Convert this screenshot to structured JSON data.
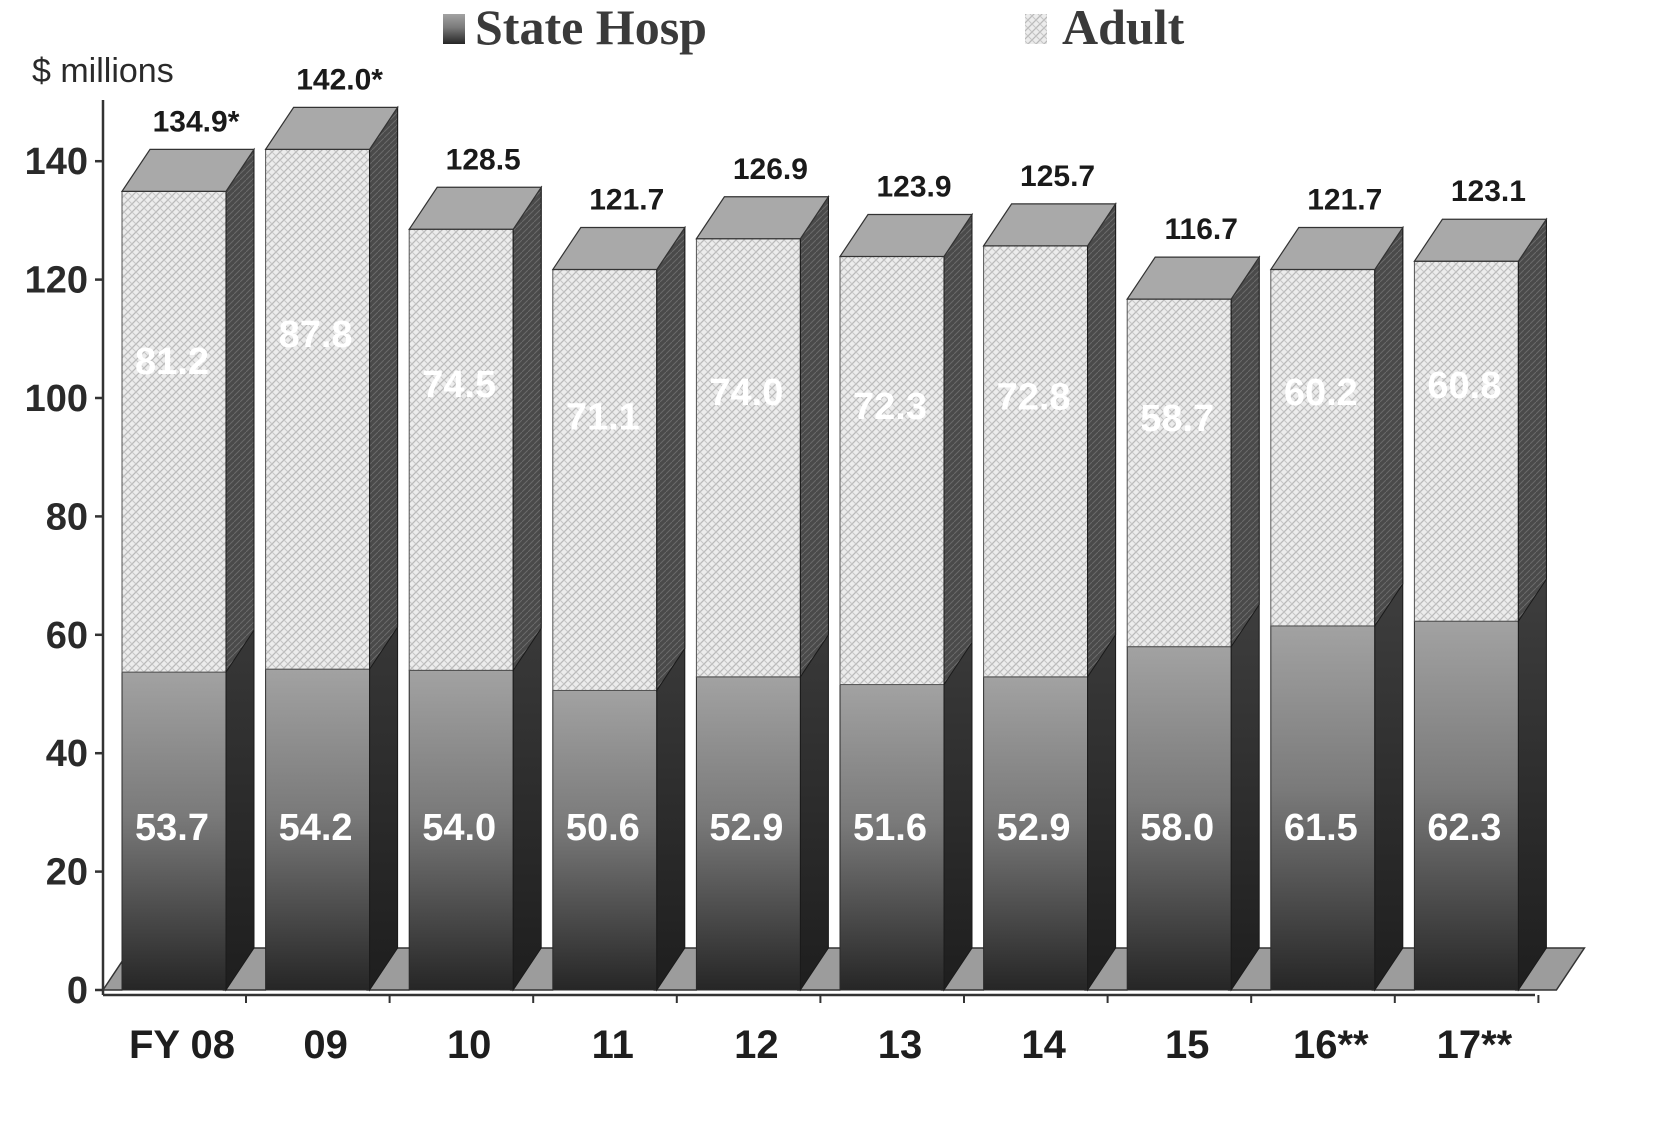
{
  "chart_data": {
    "type": "bar",
    "stacked": true,
    "three_d": true,
    "y_unit_label": "$ millions",
    "categories": [
      "FY 08",
      "09",
      "10",
      "11",
      "12",
      "13",
      "14",
      "15",
      "16**",
      "17**"
    ],
    "series": [
      {
        "name": "State Hosp",
        "values": [
          53.7,
          54.2,
          54.0,
          50.6,
          52.9,
          51.6,
          52.9,
          58.0,
          61.5,
          62.3
        ],
        "labels": [
          "53.7",
          "54.2",
          "54.0",
          "50.6",
          "52.9",
          "51.6",
          "52.9",
          "58.0",
          "61.5",
          "62.3"
        ]
      },
      {
        "name": "Adult",
        "values": [
          81.2,
          87.8,
          74.5,
          71.1,
          74.0,
          72.3,
          72.8,
          58.7,
          60.2,
          60.8
        ],
        "labels": [
          "81.2",
          "87.8",
          "74.5",
          "71.1",
          "74.0",
          "72.3",
          "72.8",
          "58.7",
          "60.2",
          "60.8"
        ]
      }
    ],
    "totals": [
      "134.9*",
      "142.0*",
      "128.5",
      "121.7",
      "126.9",
      "123.9",
      "125.7",
      "116.7",
      "121.7",
      "123.1"
    ],
    "y_ticks": [
      "0",
      "20",
      "40",
      "60",
      "80",
      "100",
      "120",
      "140"
    ],
    "ylim": [
      0,
      150
    ],
    "legend_position": "top",
    "colors": {
      "state_hosp_front_top": "#9a9a9a",
      "state_hosp_front_bottom": "#2c2c2c",
      "adult_fill": "#e4e4e4",
      "adult_hatch": "#b8b8b8",
      "top_face": "#a8a8a8",
      "side_face": "#3a3a3a",
      "axis": "#333333"
    }
  }
}
